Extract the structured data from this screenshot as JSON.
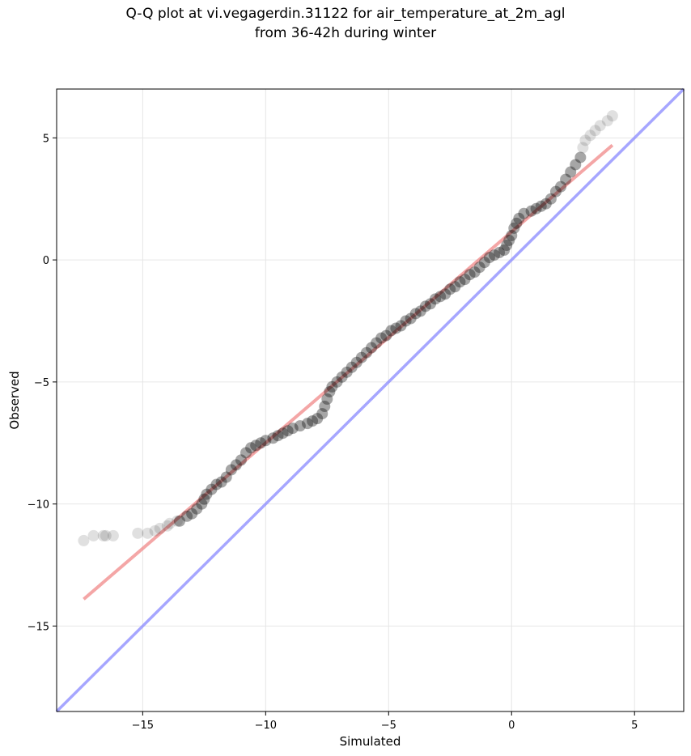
{
  "chart_data": {
    "type": "scatter",
    "title": "Q-Q plot at vi.vegagerdin.31122 for air_temperature_at_2m_agl",
    "subtitle": "from 36-42h during winter",
    "xlabel": "Simulated",
    "ylabel": "Observed",
    "xlim": [
      -18.5,
      7.0
    ],
    "ylim": [
      -18.5,
      7.0
    ],
    "xticks": [
      -15,
      -10,
      -5,
      0,
      5
    ],
    "yticks": [
      -15,
      -10,
      -5,
      0,
      5
    ],
    "xtick_labels": [
      "−15",
      "−10",
      "−5",
      "0",
      "5"
    ],
    "ytick_labels": [
      "−15",
      "−10",
      "−5",
      "0",
      "5"
    ],
    "grid": true,
    "colors": {
      "points": "#000000",
      "fit_line": "#f08080",
      "identity_line": "#8888ff",
      "grid": "#e6e6e6"
    },
    "series": [
      {
        "type": "scatter",
        "points": [
          [
            -17.4,
            -11.5
          ],
          [
            -17.0,
            -11.3
          ],
          [
            -16.6,
            -11.3
          ],
          [
            -16.5,
            -11.3
          ],
          [
            -16.2,
            -11.3
          ],
          [
            -15.2,
            -11.2
          ],
          [
            -14.8,
            -11.2
          ],
          [
            -14.5,
            -11.1
          ],
          [
            -14.3,
            -11.0
          ],
          [
            -14.0,
            -10.9
          ],
          [
            -13.9,
            -10.8
          ],
          [
            -13.6,
            -10.7
          ],
          [
            -13.5,
            -10.7
          ],
          [
            -13.2,
            -10.5
          ],
          [
            -13.0,
            -10.4
          ],
          [
            -12.8,
            -10.2
          ],
          [
            -12.6,
            -10.0
          ],
          [
            -12.5,
            -9.8
          ],
          [
            -12.4,
            -9.6
          ],
          [
            -12.2,
            -9.4
          ],
          [
            -12.0,
            -9.2
          ],
          [
            -11.8,
            -9.1
          ],
          [
            -11.6,
            -8.9
          ],
          [
            -11.4,
            -8.6
          ],
          [
            -11.2,
            -8.4
          ],
          [
            -11.0,
            -8.2
          ],
          [
            -10.8,
            -7.9
          ],
          [
            -10.6,
            -7.7
          ],
          [
            -10.4,
            -7.6
          ],
          [
            -10.2,
            -7.5
          ],
          [
            -10.0,
            -7.4
          ],
          [
            -9.7,
            -7.3
          ],
          [
            -9.5,
            -7.2
          ],
          [
            -9.3,
            -7.1
          ],
          [
            -9.1,
            -7.0
          ],
          [
            -8.9,
            -6.9
          ],
          [
            -8.6,
            -6.8
          ],
          [
            -8.3,
            -6.7
          ],
          [
            -8.1,
            -6.6
          ],
          [
            -7.9,
            -6.5
          ],
          [
            -7.7,
            -6.3
          ],
          [
            -7.6,
            -6.0
          ],
          [
            -7.5,
            -5.7
          ],
          [
            -7.4,
            -5.4
          ],
          [
            -7.3,
            -5.2
          ],
          [
            -7.1,
            -5.0
          ],
          [
            -6.9,
            -4.8
          ],
          [
            -6.7,
            -4.6
          ],
          [
            -6.5,
            -4.4
          ],
          [
            -6.3,
            -4.2
          ],
          [
            -6.1,
            -4.0
          ],
          [
            -5.9,
            -3.8
          ],
          [
            -5.7,
            -3.6
          ],
          [
            -5.5,
            -3.4
          ],
          [
            -5.3,
            -3.2
          ],
          [
            -5.1,
            -3.1
          ],
          [
            -4.9,
            -2.9
          ],
          [
            -4.7,
            -2.8
          ],
          [
            -4.5,
            -2.7
          ],
          [
            -4.3,
            -2.5
          ],
          [
            -4.1,
            -2.4
          ],
          [
            -3.9,
            -2.2
          ],
          [
            -3.7,
            -2.1
          ],
          [
            -3.5,
            -1.9
          ],
          [
            -3.3,
            -1.8
          ],
          [
            -3.1,
            -1.6
          ],
          [
            -2.9,
            -1.5
          ],
          [
            -2.7,
            -1.4
          ],
          [
            -2.5,
            -1.2
          ],
          [
            -2.3,
            -1.1
          ],
          [
            -2.1,
            -0.9
          ],
          [
            -1.9,
            -0.8
          ],
          [
            -1.7,
            -0.6
          ],
          [
            -1.5,
            -0.5
          ],
          [
            -1.3,
            -0.3
          ],
          [
            -1.1,
            -0.1
          ],
          [
            -0.9,
            0.1
          ],
          [
            -0.7,
            0.2
          ],
          [
            -0.5,
            0.3
          ],
          [
            -0.3,
            0.4
          ],
          [
            -0.2,
            0.6
          ],
          [
            -0.1,
            0.8
          ],
          [
            0.0,
            1.0
          ],
          [
            0.1,
            1.3
          ],
          [
            0.2,
            1.5
          ],
          [
            0.3,
            1.7
          ],
          [
            0.5,
            1.9
          ],
          [
            0.8,
            2.0
          ],
          [
            1.0,
            2.1
          ],
          [
            1.2,
            2.2
          ],
          [
            1.4,
            2.3
          ],
          [
            1.6,
            2.5
          ],
          [
            1.8,
            2.8
          ],
          [
            2.0,
            3.0
          ],
          [
            2.2,
            3.3
          ],
          [
            2.4,
            3.6
          ],
          [
            2.6,
            3.9
          ],
          [
            2.8,
            4.2
          ],
          [
            2.9,
            4.6
          ],
          [
            3.0,
            4.9
          ],
          [
            3.2,
            5.1
          ],
          [
            3.4,
            5.3
          ],
          [
            3.6,
            5.5
          ],
          [
            3.9,
            5.7
          ],
          [
            4.1,
            5.9
          ]
        ]
      },
      {
        "type": "line",
        "role": "fit",
        "x": [
          -17.4,
          4.1
        ],
        "y": [
          -13.9,
          4.7
        ]
      },
      {
        "type": "line",
        "role": "identity",
        "x": [
          -18.5,
          7.0
        ],
        "y": [
          -18.5,
          7.0
        ]
      }
    ]
  }
}
